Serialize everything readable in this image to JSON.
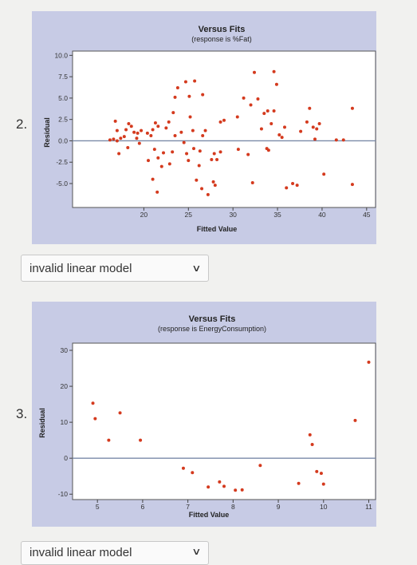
{
  "questions": [
    {
      "number": "2.",
      "answer": "invalid linear model"
    },
    {
      "number": "3.",
      "answer": "invalid linear model"
    }
  ],
  "colors": {
    "panel": "#c7cbe5",
    "point": "#d43a1e",
    "plot_bg": "#ffffff",
    "ref_line": "#7a8aa8"
  },
  "chart_data": [
    {
      "type": "scatter",
      "title": "Versus Fits",
      "subtitle": "(response is %Fat)",
      "xlabel": "Fitted Value",
      "ylabel": "Residual",
      "xlim": [
        12,
        46
      ],
      "ylim": [
        -7.8,
        10.5
      ],
      "xticks": [
        20,
        25,
        30,
        35,
        40,
        45
      ],
      "yticks": [
        10.0,
        7.5,
        5.0,
        2.5,
        0.0,
        -2.5,
        -5.0
      ],
      "ytick_labels": [
        "10.0",
        "7.5",
        "5.0",
        "2.5",
        "0.0",
        "-2.5",
        "-5.0"
      ],
      "reference_line": 0,
      "grid": false,
      "points": [
        [
          16.2,
          0.1
        ],
        [
          16.6,
          0.2
        ],
        [
          17.0,
          0.0
        ],
        [
          17.4,
          0.3
        ],
        [
          17.8,
          0.5
        ],
        [
          18.0,
          1.3
        ],
        [
          18.3,
          2.0
        ],
        [
          18.6,
          1.7
        ],
        [
          18.9,
          1.0
        ],
        [
          19.3,
          0.9
        ],
        [
          19.7,
          1.2
        ],
        [
          17.0,
          1.2
        ],
        [
          17.2,
          -1.5
        ],
        [
          18.2,
          -0.8
        ],
        [
          19.2,
          0.3
        ],
        [
          19.5,
          -0.3
        ],
        [
          16.8,
          2.3
        ],
        [
          20.4,
          0.9
        ],
        [
          20.8,
          0.6
        ],
        [
          21.0,
          1.3
        ],
        [
          21.3,
          2.1
        ],
        [
          21.6,
          1.7
        ],
        [
          20.5,
          -2.3
        ],
        [
          21.2,
          -1.0
        ],
        [
          21.6,
          -2.0
        ],
        [
          22.0,
          -3.0
        ],
        [
          21.0,
          -4.5
        ],
        [
          21.5,
          -6.0
        ],
        [
          22.2,
          -1.4
        ],
        [
          22.5,
          1.5
        ],
        [
          22.8,
          2.2
        ],
        [
          23.2,
          -1.3
        ],
        [
          22.9,
          -2.7
        ],
        [
          23.3,
          3.3
        ],
        [
          23.5,
          5.1
        ],
        [
          23.8,
          6.2
        ],
        [
          23.5,
          0.6
        ],
        [
          24.2,
          1.0
        ],
        [
          24.5,
          -0.2
        ],
        [
          24.8,
          -1.5
        ],
        [
          25.0,
          -2.3
        ],
        [
          25.2,
          2.8
        ],
        [
          25.5,
          1.2
        ],
        [
          25.6,
          -0.9
        ],
        [
          25.9,
          -4.6
        ],
        [
          26.2,
          -2.9
        ],
        [
          26.3,
          -1.2
        ],
        [
          26.6,
          0.6
        ],
        [
          26.9,
          1.2
        ],
        [
          26.5,
          -5.6
        ],
        [
          27.2,
          -6.3
        ],
        [
          27.6,
          -2.2
        ],
        [
          27.9,
          -1.5
        ],
        [
          24.7,
          6.9
        ],
        [
          25.1,
          5.2
        ],
        [
          25.7,
          7.0
        ],
        [
          26.6,
          5.4
        ],
        [
          27.8,
          -4.8
        ],
        [
          28.0,
          -5.2
        ],
        [
          28.2,
          -2.2
        ],
        [
          28.6,
          -1.3
        ],
        [
          28.6,
          2.2
        ],
        [
          29.0,
          2.4
        ],
        [
          30.5,
          2.8
        ],
        [
          31.2,
          5.0
        ],
        [
          30.6,
          -1.0
        ],
        [
          31.7,
          -1.6
        ],
        [
          32.0,
          4.2
        ],
        [
          32.2,
          -4.9
        ],
        [
          32.8,
          4.9
        ],
        [
          33.5,
          3.2
        ],
        [
          33.9,
          3.5
        ],
        [
          33.2,
          1.4
        ],
        [
          34.6,
          3.5
        ],
        [
          34.0,
          -1.1
        ],
        [
          35.2,
          0.7
        ],
        [
          35.8,
          1.6
        ],
        [
          32.4,
          8.0
        ],
        [
          34.9,
          6.6
        ],
        [
          34.6,
          8.1
        ],
        [
          36.0,
          -5.5
        ],
        [
          36.7,
          -5.0
        ],
        [
          37.2,
          -5.2
        ],
        [
          37.6,
          1.1
        ],
        [
          38.3,
          2.2
        ],
        [
          38.6,
          3.8
        ],
        [
          39.0,
          1.6
        ],
        [
          39.4,
          1.4
        ],
        [
          39.7,
          2.0
        ],
        [
          40.2,
          -3.9
        ],
        [
          41.6,
          0.1
        ],
        [
          39.2,
          0.2
        ],
        [
          42.4,
          0.1
        ],
        [
          43.4,
          -5.1
        ],
        [
          43.4,
          3.8
        ],
        [
          33.8,
          -0.9
        ],
        [
          35.5,
          0.4
        ],
        [
          34.3,
          2.0
        ]
      ]
    },
    {
      "type": "scatter",
      "title": "Versus Fits",
      "subtitle": "(response is EnergyConsumption)",
      "xlabel": "Fitted Value",
      "ylabel": "Residual",
      "xlim": [
        4.45,
        11.15
      ],
      "ylim": [
        -11.5,
        32
      ],
      "xticks": [
        5,
        6,
        7,
        8,
        9,
        10,
        11
      ],
      "yticks": [
        30,
        20,
        10,
        0,
        -10
      ],
      "reference_line": 0,
      "grid": false,
      "points": [
        [
          4.9,
          15.3
        ],
        [
          4.95,
          11.0
        ],
        [
          5.25,
          5.0
        ],
        [
          5.5,
          12.6
        ],
        [
          5.95,
          5.0
        ],
        [
          6.9,
          -2.8
        ],
        [
          7.1,
          -4.0
        ],
        [
          7.45,
          -8.0
        ],
        [
          7.7,
          -6.6
        ],
        [
          7.8,
          -7.8
        ],
        [
          8.05,
          -8.9
        ],
        [
          8.2,
          -8.8
        ],
        [
          8.6,
          -2.0
        ],
        [
          9.45,
          -7.0
        ],
        [
          9.7,
          6.5
        ],
        [
          9.75,
          3.8
        ],
        [
          9.95,
          -4.2
        ],
        [
          10.0,
          -7.2
        ],
        [
          9.85,
          -3.7
        ],
        [
          10.7,
          10.5
        ],
        [
          11.0,
          26.7
        ]
      ]
    }
  ]
}
